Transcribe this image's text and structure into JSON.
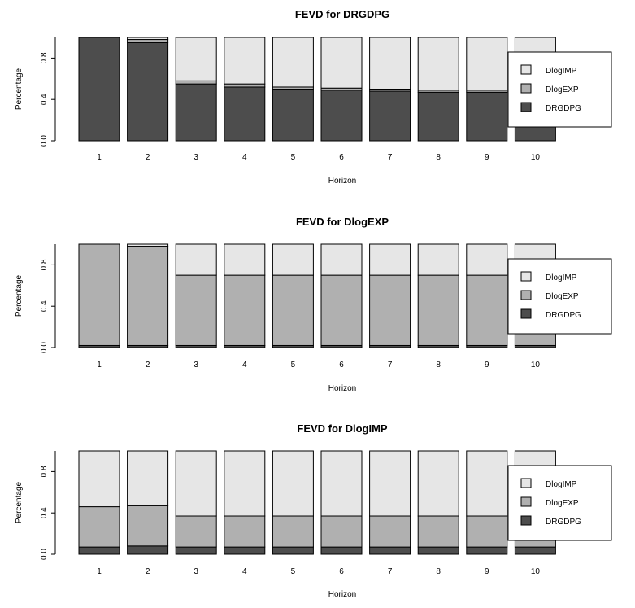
{
  "chart_data": [
    {
      "type": "bar",
      "stacked": true,
      "title": "FEVD for DRGDPG",
      "xlabel": "Horizon",
      "ylabel": "Percentage",
      "ylim": [
        0,
        1
      ],
      "yticks": [
        "0.0",
        "0.4",
        "0.8"
      ],
      "categories": [
        "1",
        "2",
        "3",
        "4",
        "5",
        "6",
        "7",
        "8",
        "9",
        "10"
      ],
      "legend_position": "right",
      "series": [
        {
          "name": "DRGDPG",
          "color": "#4d4d4d",
          "values": [
            1.0,
            0.95,
            0.55,
            0.52,
            0.5,
            0.49,
            0.48,
            0.47,
            0.47,
            0.47
          ]
        },
        {
          "name": "DlogEXP",
          "color": "#b0b0b0",
          "values": [
            0.0,
            0.03,
            0.03,
            0.03,
            0.02,
            0.02,
            0.02,
            0.02,
            0.02,
            0.02
          ]
        },
        {
          "name": "DlogIMP",
          "color": "#e6e6e6",
          "values": [
            0.0,
            0.02,
            0.42,
            0.45,
            0.48,
            0.49,
            0.5,
            0.51,
            0.51,
            0.51
          ]
        }
      ]
    },
    {
      "type": "bar",
      "stacked": true,
      "title": "FEVD for DlogEXP",
      "xlabel": "Horizon",
      "ylabel": "Percentage",
      "ylim": [
        0,
        1
      ],
      "yticks": [
        "0.0",
        "0.4",
        "0.8"
      ],
      "categories": [
        "1",
        "2",
        "3",
        "4",
        "5",
        "6",
        "7",
        "8",
        "9",
        "10"
      ],
      "legend_position": "right",
      "series": [
        {
          "name": "DRGDPG",
          "color": "#4d4d4d",
          "values": [
            0.02,
            0.02,
            0.02,
            0.02,
            0.02,
            0.02,
            0.02,
            0.02,
            0.02,
            0.02
          ]
        },
        {
          "name": "DlogEXP",
          "color": "#b0b0b0",
          "values": [
            0.98,
            0.96,
            0.68,
            0.68,
            0.68,
            0.68,
            0.68,
            0.68,
            0.68,
            0.68
          ]
        },
        {
          "name": "DlogIMP",
          "color": "#e6e6e6",
          "values": [
            0.0,
            0.02,
            0.3,
            0.3,
            0.3,
            0.3,
            0.3,
            0.3,
            0.3,
            0.3
          ]
        }
      ]
    },
    {
      "type": "bar",
      "stacked": true,
      "title": "FEVD for DlogIMP",
      "xlabel": "Horizon",
      "ylabel": "Percentage",
      "ylim": [
        0,
        1
      ],
      "yticks": [
        "0.0",
        "0.4",
        "0.8"
      ],
      "categories": [
        "1",
        "2",
        "3",
        "4",
        "5",
        "6",
        "7",
        "8",
        "9",
        "10"
      ],
      "legend_position": "right",
      "series": [
        {
          "name": "DRGDPG",
          "color": "#4d4d4d",
          "values": [
            0.07,
            0.08,
            0.07,
            0.07,
            0.07,
            0.07,
            0.07,
            0.07,
            0.07,
            0.07
          ]
        },
        {
          "name": "DlogEXP",
          "color": "#b0b0b0",
          "values": [
            0.39,
            0.39,
            0.3,
            0.3,
            0.3,
            0.3,
            0.3,
            0.3,
            0.3,
            0.3
          ]
        },
        {
          "name": "DlogIMP",
          "color": "#e6e6e6",
          "values": [
            0.54,
            0.53,
            0.63,
            0.63,
            0.63,
            0.63,
            0.63,
            0.63,
            0.63,
            0.63
          ]
        }
      ]
    }
  ]
}
